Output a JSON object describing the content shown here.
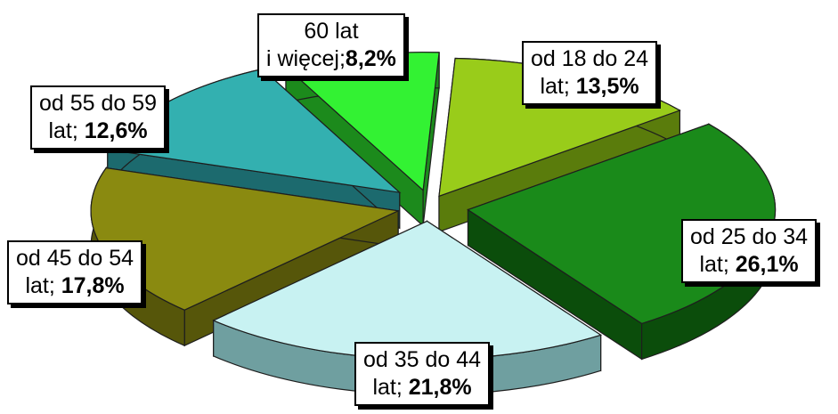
{
  "chart_data": {
    "type": "pie",
    "title": "",
    "slices": [
      {
        "label_line1": "60 lat",
        "label_line2_prefix": "i więcej;",
        "value_text": "8,2%",
        "value": 8.2,
        "color": "#33f233",
        "side_color": "#1c8a1c"
      },
      {
        "label_line1": "od 18 do 24",
        "label_line2_prefix": "lat; ",
        "value_text": "13,5%",
        "value": 13.5,
        "color": "#99cc1a",
        "side_color": "#5a7c0c"
      },
      {
        "label_line1": "od 25 do 34",
        "label_line2_prefix": "lat; ",
        "value_text": "26,1%",
        "value": 26.1,
        "color": "#1a8a1a",
        "side_color": "#0b4d0b"
      },
      {
        "label_line1": "od 35 do 44",
        "label_line2_prefix": "lat; ",
        "value_text": "21,8%",
        "value": 21.8,
        "color": "#c8f2f2",
        "side_color": "#6f9fa0"
      },
      {
        "label_line1": "od 45 do 54",
        "label_line2_prefix": "lat; ",
        "value_text": "17,8%",
        "value": 17.8,
        "color": "#8a8a10",
        "side_color": "#56560a"
      },
      {
        "label_line1": "od 55 do 59",
        "label_line2_prefix": "lat; ",
        "value_text": "12,6%",
        "value": 12.6,
        "color": "#33b0b0",
        "side_color": "#1c6a6e"
      }
    ]
  }
}
